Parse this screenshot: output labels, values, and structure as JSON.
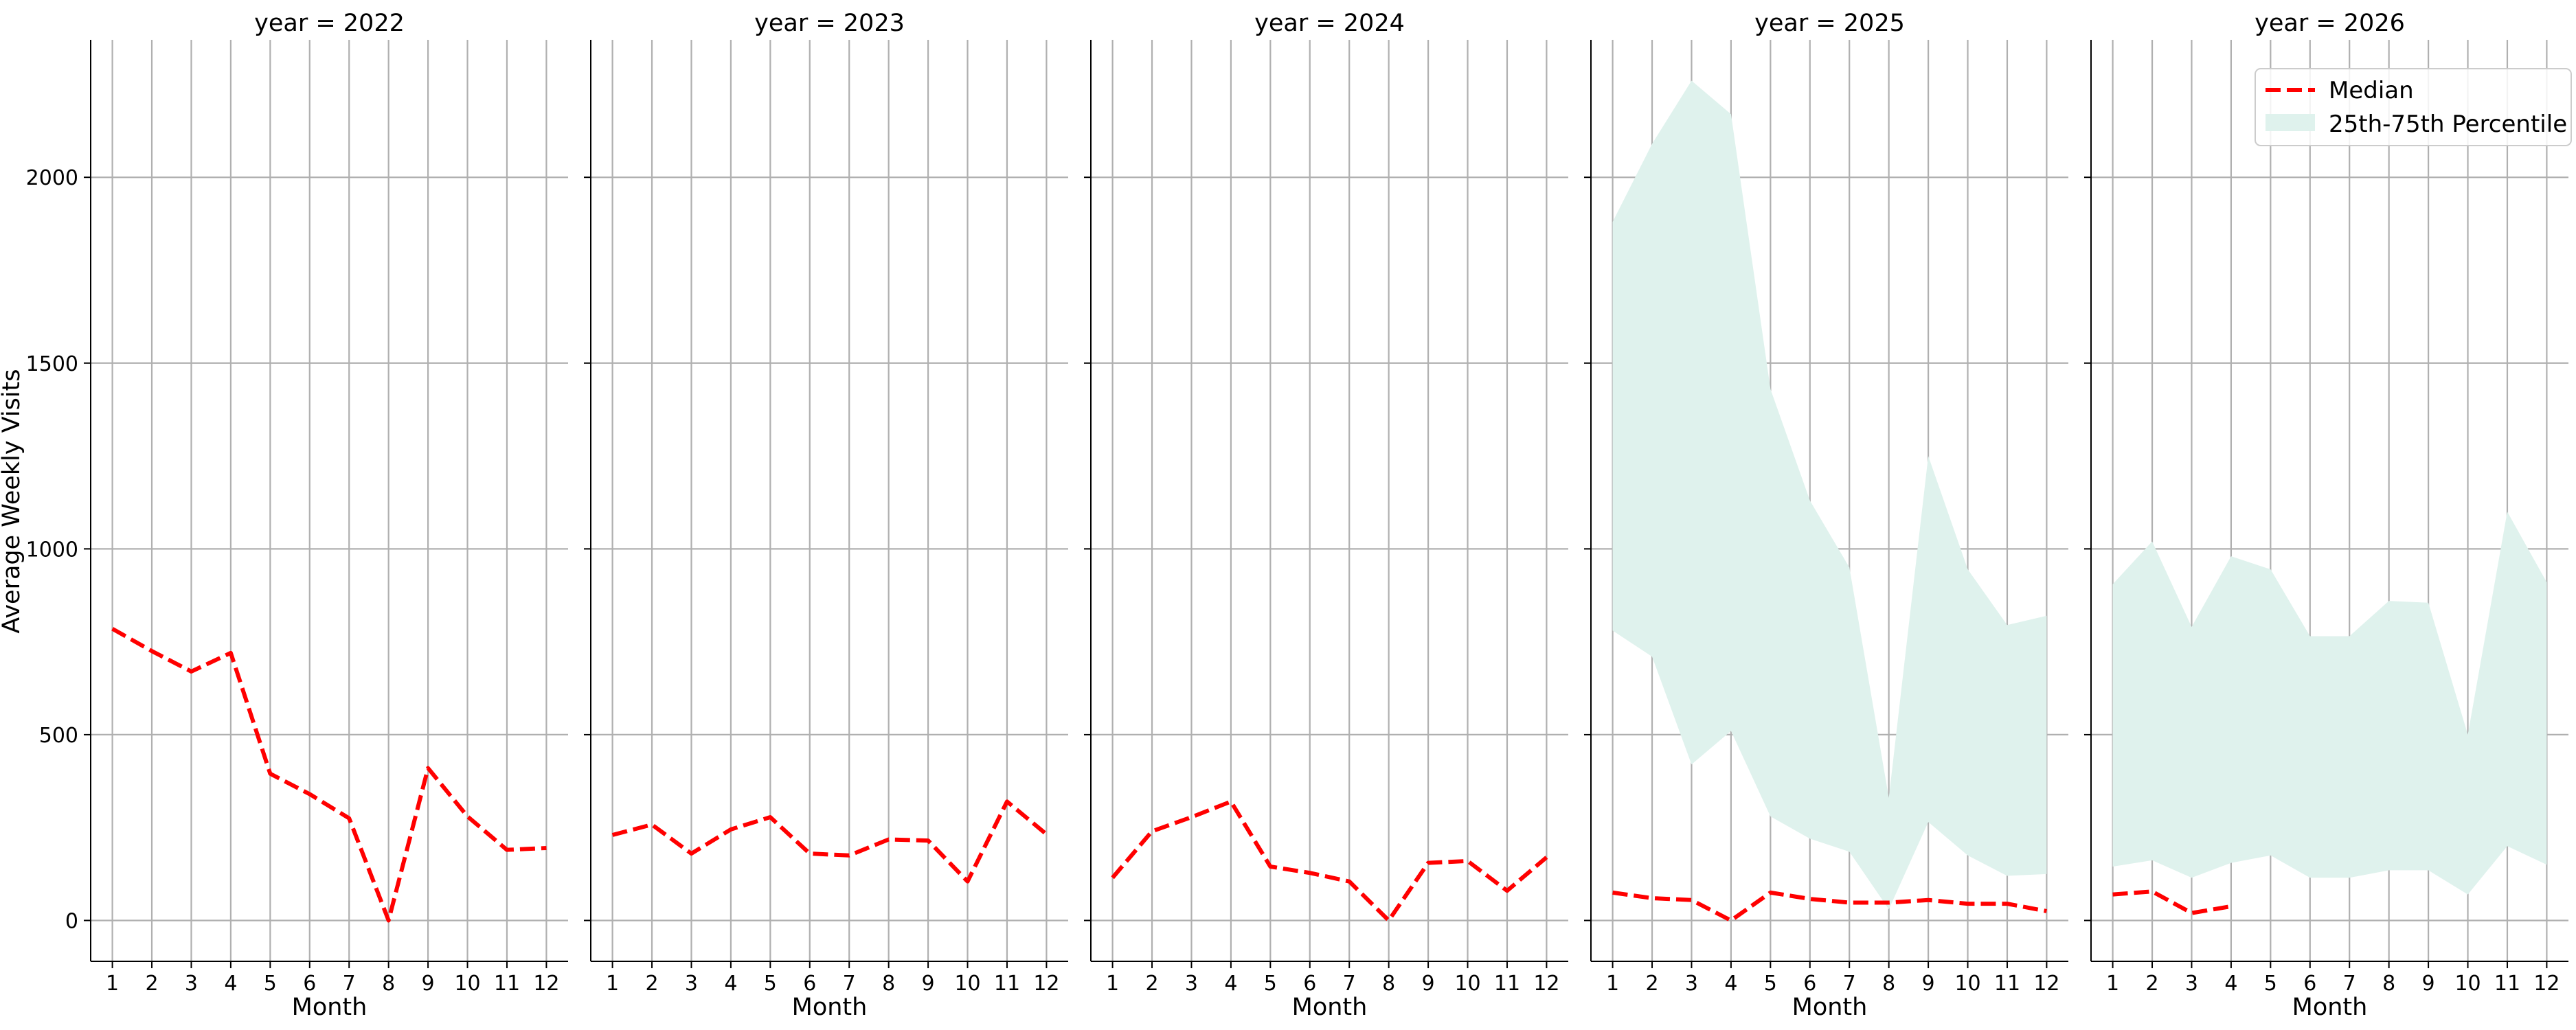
{
  "chart_data": {
    "type": "line",
    "facet_titles": [
      "year = 2022",
      "year = 2023",
      "year = 2024",
      "year = 2025",
      "year = 2026"
    ],
    "xlabel": "Month",
    "ylabel": "Average Weekly Visits",
    "x_ticks": [
      1,
      2,
      3,
      4,
      5,
      6,
      7,
      8,
      9,
      10,
      11,
      12
    ],
    "xlim": [
      0.45,
      12.55
    ],
    "y_ticks": [
      0,
      500,
      1000,
      1500,
      2000
    ],
    "ylim": [
      -110,
      2370
    ],
    "grid": true,
    "legend": {
      "placement": "top-right",
      "entries": [
        "Median",
        "25th-75th Percentile"
      ]
    },
    "colors": {
      "median": "#ff0000",
      "band": "#dff2ed"
    },
    "facets": [
      {
        "title": "year = 2022",
        "median": [
          [
            1,
            785
          ],
          [
            2,
            725
          ],
          [
            3,
            670
          ],
          [
            4,
            720
          ],
          [
            5,
            395
          ],
          [
            6,
            340
          ],
          [
            7,
            275
          ],
          [
            8,
            0
          ],
          [
            9,
            410
          ],
          [
            10,
            280
          ],
          [
            11,
            190
          ],
          [
            12,
            195
          ]
        ],
        "q25": [],
        "q75": []
      },
      {
        "title": "year = 2023",
        "median": [
          [
            1,
            230
          ],
          [
            2,
            258
          ],
          [
            3,
            180
          ],
          [
            4,
            245
          ],
          [
            5,
            278
          ],
          [
            6,
            180
          ],
          [
            7,
            175
          ],
          [
            8,
            218
          ],
          [
            9,
            215
          ],
          [
            10,
            105
          ],
          [
            11,
            320
          ],
          [
            12,
            232
          ]
        ],
        "q25": [],
        "q75": []
      },
      {
        "title": "year = 2024",
        "median": [
          [
            1,
            115
          ],
          [
            2,
            240
          ],
          [
            3,
            278
          ],
          [
            4,
            320
          ],
          [
            5,
            145
          ],
          [
            6,
            128
          ],
          [
            7,
            105
          ],
          [
            8,
            0
          ],
          [
            9,
            155
          ],
          [
            10,
            160
          ],
          [
            11,
            80
          ],
          [
            12,
            170
          ]
        ],
        "q25": [],
        "q75": []
      },
      {
        "title": "year = 2025",
        "median": [
          [
            1,
            75
          ],
          [
            2,
            60
          ],
          [
            3,
            55
          ],
          [
            4,
            0
          ],
          [
            5,
            75
          ],
          [
            6,
            58
          ],
          [
            7,
            48
          ],
          [
            8,
            48
          ],
          [
            9,
            55
          ],
          [
            10,
            45
          ],
          [
            11,
            45
          ],
          [
            12,
            25
          ]
        ],
        "q25": [
          [
            1,
            780
          ],
          [
            2,
            710
          ],
          [
            3,
            420
          ],
          [
            4,
            510
          ],
          [
            5,
            280
          ],
          [
            6,
            220
          ],
          [
            7,
            185
          ],
          [
            8,
            30
          ],
          [
            9,
            265
          ],
          [
            10,
            175
          ],
          [
            11,
            120
          ],
          [
            12,
            125
          ]
        ],
        "q75": [
          [
            1,
            1880
          ],
          [
            2,
            2090
          ],
          [
            3,
            2260
          ],
          [
            4,
            2170
          ],
          [
            5,
            1430
          ],
          [
            6,
            1130
          ],
          [
            7,
            950
          ],
          [
            8,
            330
          ],
          [
            9,
            1250
          ],
          [
            10,
            945
          ],
          [
            11,
            795
          ],
          [
            12,
            820
          ]
        ]
      },
      {
        "title": "year = 2026",
        "median": [
          [
            1,
            70
          ],
          [
            2,
            78
          ],
          [
            3,
            20
          ],
          [
            4,
            38
          ]
        ],
        "q25": [
          [
            1,
            145
          ],
          [
            2,
            162
          ],
          [
            3,
            115
          ],
          [
            4,
            155
          ],
          [
            5,
            175
          ],
          [
            6,
            115
          ],
          [
            7,
            115
          ],
          [
            8,
            135
          ],
          [
            9,
            135
          ],
          [
            10,
            70
          ],
          [
            11,
            200
          ],
          [
            12,
            150
          ]
        ],
        "q75": [
          [
            1,
            905
          ],
          [
            2,
            1020
          ],
          [
            3,
            790
          ],
          [
            4,
            980
          ],
          [
            5,
            945
          ],
          [
            6,
            765
          ],
          [
            7,
            765
          ],
          [
            8,
            860
          ],
          [
            9,
            855
          ],
          [
            10,
            500
          ],
          [
            11,
            1100
          ],
          [
            12,
            910
          ]
        ]
      }
    ]
  }
}
